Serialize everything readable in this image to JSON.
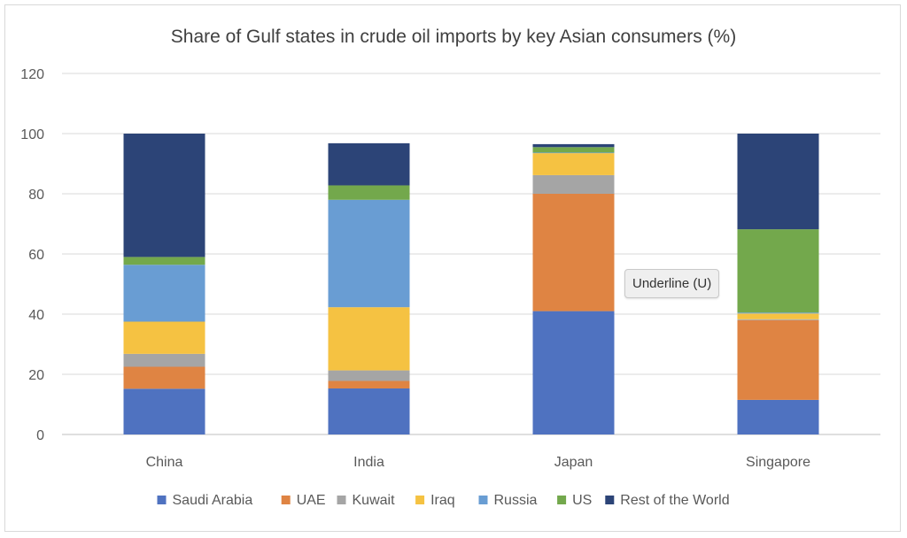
{
  "chart_data": {
    "type": "bar",
    "stacked": true,
    "title": "Share of Gulf states in crude oil imports by key Asian consumers (%)",
    "categories": [
      "China",
      "India",
      "Japan",
      "Singapore"
    ],
    "ylim": [
      0,
      120
    ],
    "yticks": [
      0,
      20,
      40,
      60,
      80,
      100,
      120
    ],
    "grid": true,
    "legend_position": "bottom",
    "series": [
      {
        "name": "Saudi Arabia",
        "color": "#4f72c0",
        "values": [
          15.2,
          15.3,
          41.0,
          11.5
        ]
      },
      {
        "name": "UAE",
        "color": "#df8443",
        "values": [
          7.3,
          2.5,
          39.0,
          26.5
        ]
      },
      {
        "name": "Kuwait",
        "color": "#a5a5a5",
        "values": [
          4.3,
          3.5,
          6.2,
          0.3
        ]
      },
      {
        "name": "Iraq",
        "color": "#f5c242",
        "values": [
          10.7,
          21.0,
          7.3,
          1.9
        ]
      },
      {
        "name": "Russia",
        "color": "#699dd3",
        "values": [
          18.9,
          35.7,
          0.2,
          0.3
        ]
      },
      {
        "name": "US",
        "color": "#73a84c",
        "values": [
          2.6,
          4.8,
          1.8,
          27.7
        ]
      },
      {
        "name": "Rest of the World",
        "color": "#2c4477",
        "values": [
          41.0,
          14.0,
          1.0,
          31.8
        ]
      }
    ]
  },
  "tooltip": {
    "text": "Underline (U)"
  }
}
